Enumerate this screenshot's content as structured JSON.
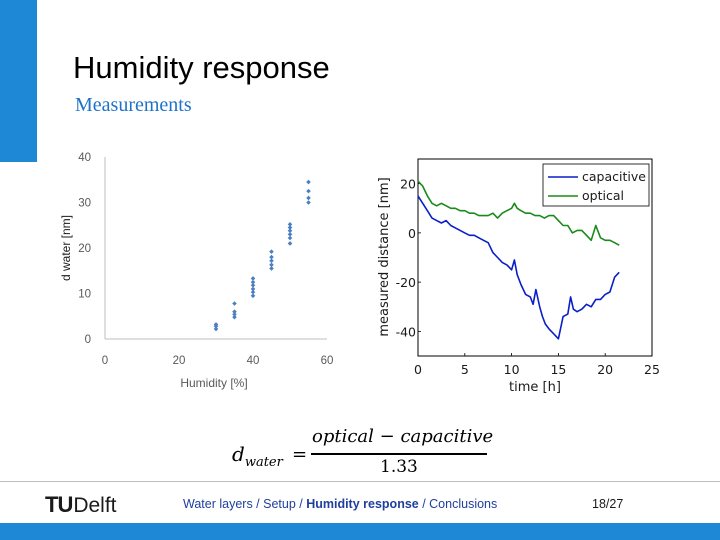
{
  "slide": {
    "title": "Humidity response",
    "subtitle": "Measurements",
    "accent_color": "#1e88d6"
  },
  "formula": {
    "lhs_main": "d",
    "lhs_sub": "water",
    "equals": "=",
    "numerator": "optical − capacitive",
    "denominator": "1.33"
  },
  "footer": {
    "logo_tu": "TU",
    "logo_delft": "Delft",
    "nav_before": "Water layers / Setup / ",
    "nav_current": "Humidity response",
    "nav_after": " / Conclusions",
    "page": "18/27"
  },
  "chart_data": [
    {
      "type": "scatter",
      "xlabel": "Humidity [%]",
      "ylabel": "d water [nm]",
      "xlim": [
        0,
        60
      ],
      "ylim": [
        0,
        40
      ],
      "xticks": [
        0,
        20,
        40,
        60
      ],
      "yticks": [
        0,
        10,
        20,
        30,
        40
      ],
      "grid": false,
      "color": "#4a7fc1",
      "points": [
        [
          30,
          2.2
        ],
        [
          30,
          2.8
        ],
        [
          30,
          3.2
        ],
        [
          35,
          4.8
        ],
        [
          35,
          5.4
        ],
        [
          35,
          6.0
        ],
        [
          35,
          7.8
        ],
        [
          40,
          9.5
        ],
        [
          40,
          10.3
        ],
        [
          40,
          11.0
        ],
        [
          40,
          11.8
        ],
        [
          40,
          12.5
        ],
        [
          40,
          13.3
        ],
        [
          45,
          15.5
        ],
        [
          45,
          16.3
        ],
        [
          45,
          17.2
        ],
        [
          45,
          18.0
        ],
        [
          45,
          19.2
        ],
        [
          50,
          21.0
        ],
        [
          50,
          22.2
        ],
        [
          50,
          23.0
        ],
        [
          50,
          23.8
        ],
        [
          50,
          24.5
        ],
        [
          50,
          25.2
        ],
        [
          55,
          30.0
        ],
        [
          55,
          31.0
        ],
        [
          55,
          32.5
        ],
        [
          55,
          34.5
        ]
      ]
    },
    {
      "type": "line",
      "xlabel": "time [h]",
      "ylabel": "measured distance [nm]",
      "xlim": [
        0,
        25
      ],
      "ylim": [
        -50,
        30
      ],
      "xticks": [
        0,
        5,
        10,
        15,
        20,
        25
      ],
      "yticks": [
        -40,
        -20,
        0,
        20
      ],
      "grid": false,
      "legend": "top-right",
      "series": [
        {
          "name": "capacitive",
          "color": "#0a1fc8",
          "x": [
            0,
            0.5,
            1,
            1.5,
            2,
            2.5,
            3,
            3.5,
            4,
            4.5,
            5,
            5.5,
            6,
            6.5,
            7,
            7.5,
            8,
            8.5,
            9,
            9.5,
            10,
            10.3,
            10.6,
            11,
            11.5,
            12,
            12.3,
            12.6,
            13,
            13.3,
            13.6,
            14,
            14.5,
            15,
            15.5,
            16,
            16.3,
            16.6,
            17,
            17.5,
            18,
            18.5,
            19,
            19.5,
            20,
            20.5,
            21,
            21.5
          ],
          "y": [
            15,
            12,
            9,
            6,
            5,
            4,
            5,
            3,
            2,
            1,
            0,
            -1,
            -1,
            -2,
            -3,
            -4,
            -8,
            -10,
            -12,
            -13,
            -15,
            -11,
            -17,
            -21,
            -25,
            -26,
            -29,
            -23,
            -30,
            -34,
            -37,
            -39,
            -41,
            -43,
            -34,
            -33,
            -26,
            -31,
            -32,
            -31,
            -29,
            -30,
            -27,
            -27,
            -25,
            -24,
            -18,
            -16
          ]
        },
        {
          "name": "optical",
          "color": "#1a8a1a",
          "x": [
            0,
            0.5,
            1,
            1.5,
            2,
            2.5,
            3,
            3.5,
            4,
            4.5,
            5,
            5.5,
            6,
            6.5,
            7,
            7.5,
            8,
            8.5,
            9,
            9.5,
            10,
            10.3,
            10.6,
            11,
            11.5,
            12,
            12.5,
            13,
            13.5,
            14,
            14.5,
            15,
            15.5,
            16,
            16.5,
            17,
            17.5,
            18,
            18.5,
            19,
            19.5,
            20,
            20.5,
            21,
            21.5
          ],
          "y": [
            21,
            19,
            15,
            12,
            11,
            12,
            11,
            10,
            10,
            9,
            9,
            8,
            8,
            7,
            7,
            7,
            8,
            6,
            8,
            9,
            10,
            12,
            10,
            9,
            8,
            8,
            7,
            7,
            6,
            7,
            7,
            5,
            3,
            3,
            0,
            1,
            1,
            -1,
            -3,
            3,
            -2,
            -3,
            -3,
            -4,
            -5
          ]
        }
      ]
    }
  ]
}
